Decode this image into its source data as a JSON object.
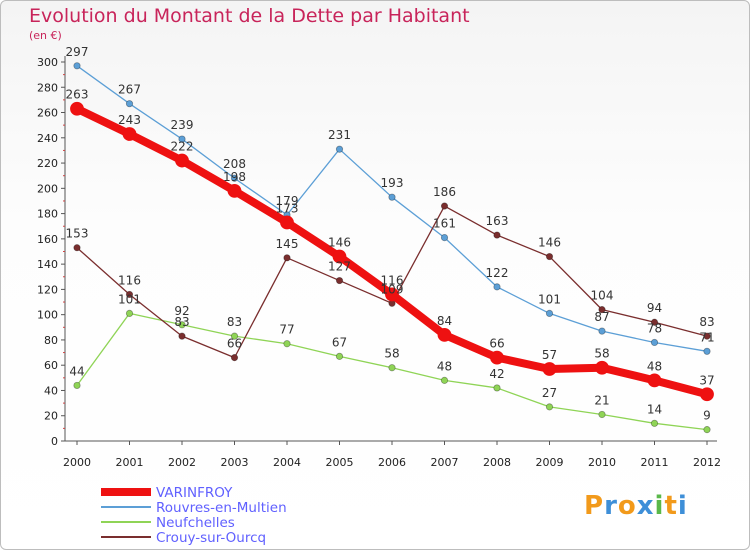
{
  "chart_data": {
    "type": "line",
    "title": "Evolution du Montant de la Dette par Habitant",
    "unit_label": "(en €)",
    "x": [
      "2000",
      "2001",
      "2002",
      "2003",
      "2004",
      "2005",
      "2006",
      "2007",
      "2008",
      "2009",
      "2010",
      "2011",
      "2012"
    ],
    "ylim": [
      0,
      300
    ],
    "yticks": [
      0,
      20,
      40,
      60,
      80,
      100,
      120,
      140,
      160,
      180,
      200,
      220,
      240,
      260,
      280,
      300
    ],
    "grid": false,
    "legend_position": "bottom-left",
    "series": [
      {
        "name": "Rouvres-en-Multien",
        "color": "#5c9fd6",
        "values": [
          297,
          267,
          239,
          208,
          179,
          231,
          193,
          161,
          122,
          101,
          87,
          78,
          71
        ]
      },
      {
        "name": "Neufchelles",
        "color": "#8fd456",
        "values": [
          44,
          101,
          92,
          83,
          77,
          67,
          58,
          48,
          42,
          27,
          21,
          14,
          9
        ]
      },
      {
        "name": "Crouy-sur-Ourcq",
        "color": "#7a2e2e",
        "values": [
          153,
          116,
          83,
          66,
          145,
          127,
          109,
          186,
          163,
          146,
          104,
          94,
          83
        ]
      },
      {
        "name": "VARINFROY",
        "color": "#ee1111",
        "values": [
          263,
          243,
          222,
          198,
          173,
          146,
          116,
          84,
          66,
          57,
          58,
          48,
          37
        ]
      }
    ],
    "legend": [
      {
        "name": "VARINFROY",
        "color": "#ee1111"
      },
      {
        "name": "Rouvres-en-Multien",
        "color": "#5c9fd6"
      },
      {
        "name": "Neufchelles",
        "color": "#8fd456"
      },
      {
        "name": "Crouy-sur-Ourcq",
        "color": "#7a2e2e"
      }
    ]
  },
  "logo": {
    "text": "Proxiti",
    "colors": [
      "#f29a1b",
      "#3e8fd8",
      "#f29a1b",
      "#3e8fd8",
      "#5ab84a",
      "#f29a1b",
      "#3e8fd8"
    ]
  }
}
